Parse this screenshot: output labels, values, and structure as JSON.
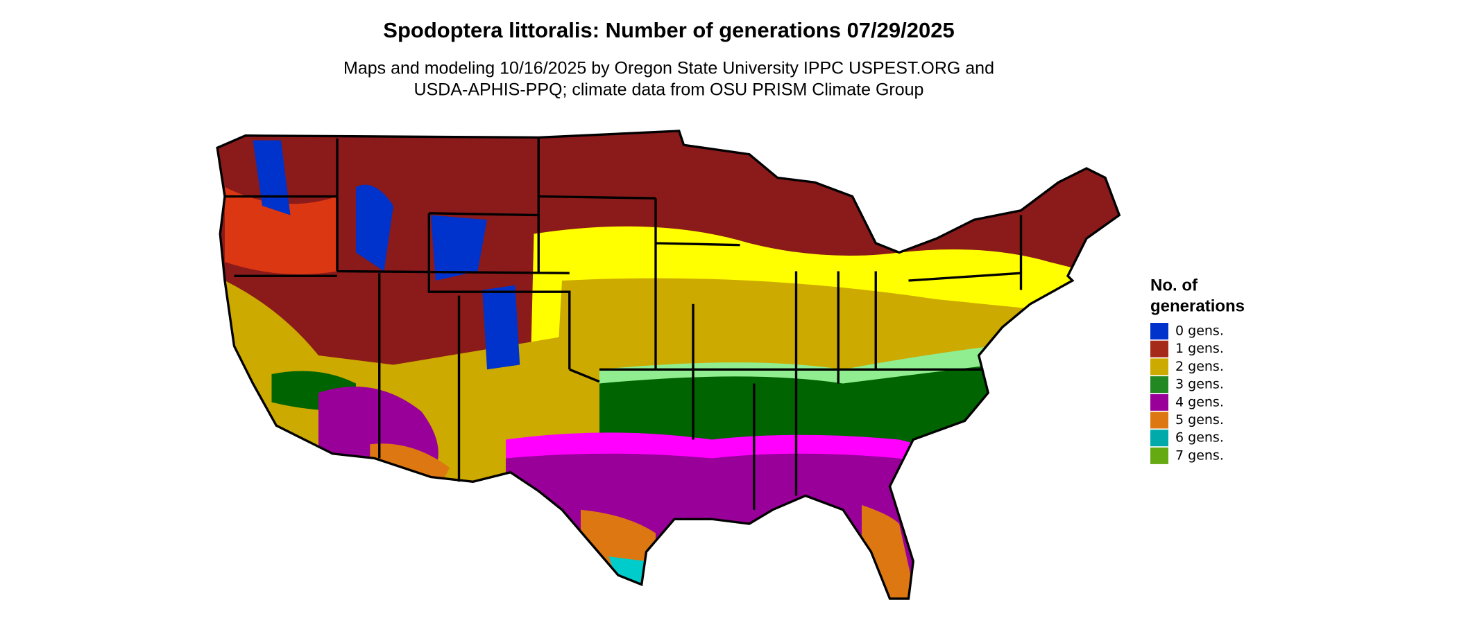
{
  "header": {
    "title": "Spodoptera littoralis: Number of generations 07/29/2025",
    "subtitle": [
      "Maps and modeling 10/16/2025 by Oregon State University IPPC USPEST.ORG and",
      "USDA-APHIS-PPQ; climate data from OSU PRISM Climate Group"
    ]
  },
  "legend": {
    "title": [
      "No. of",
      "generations"
    ],
    "items": [
      {
        "label": "0 gens.",
        "color": "#0033cc"
      },
      {
        "label": "1 gens.",
        "color": "#a52a1a"
      },
      {
        "label": "2 gens.",
        "color": "#ccaa00"
      },
      {
        "label": "3 gens.",
        "color": "#228822"
      },
      {
        "label": "4 gens.",
        "color": "#990099"
      },
      {
        "label": "5 gens.",
        "color": "#dd7711"
      },
      {
        "label": "6 gens.",
        "color": "#00aaaa"
      },
      {
        "label": "7 gens.",
        "color": "#66aa11"
      }
    ]
  }
}
